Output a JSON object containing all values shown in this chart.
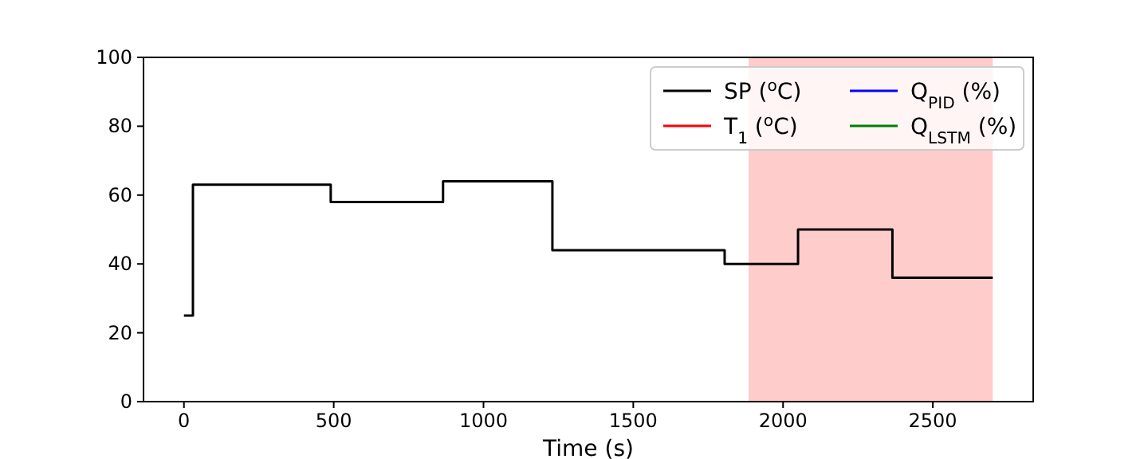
{
  "chart_data": {
    "type": "step",
    "xlabel": "Time (s)",
    "xlim": [
      -135,
      2835
    ],
    "xticks": [
      0,
      500,
      1000,
      1500,
      2000,
      2500
    ],
    "ylim": [
      0,
      100
    ],
    "yticks": [
      0,
      20,
      40,
      60,
      80,
      100
    ],
    "grid": false,
    "legend": "top right",
    "series": [
      {
        "name": "SP ($^{o}$C)",
        "color": "#000000",
        "x": [
          0,
          30,
          490,
          865,
          1230,
          1805,
          2050,
          2365,
          2700
        ],
        "values": [
          25,
          63,
          58,
          64,
          44,
          40,
          50,
          36,
          36
        ]
      },
      {
        "name": "T$_{1}$ ($^{o}$C)",
        "color": "#ff0000"
      },
      {
        "name": "Q$_{PID}$ (%)",
        "color": "#0000ff"
      },
      {
        "name": "Q$_{LSTM}$ (%)",
        "color": "#008000"
      }
    ],
    "bands": [
      {
        "axis": "x",
        "from": 1885,
        "to": 2700,
        "color": "#ffcccc"
      }
    ]
  }
}
